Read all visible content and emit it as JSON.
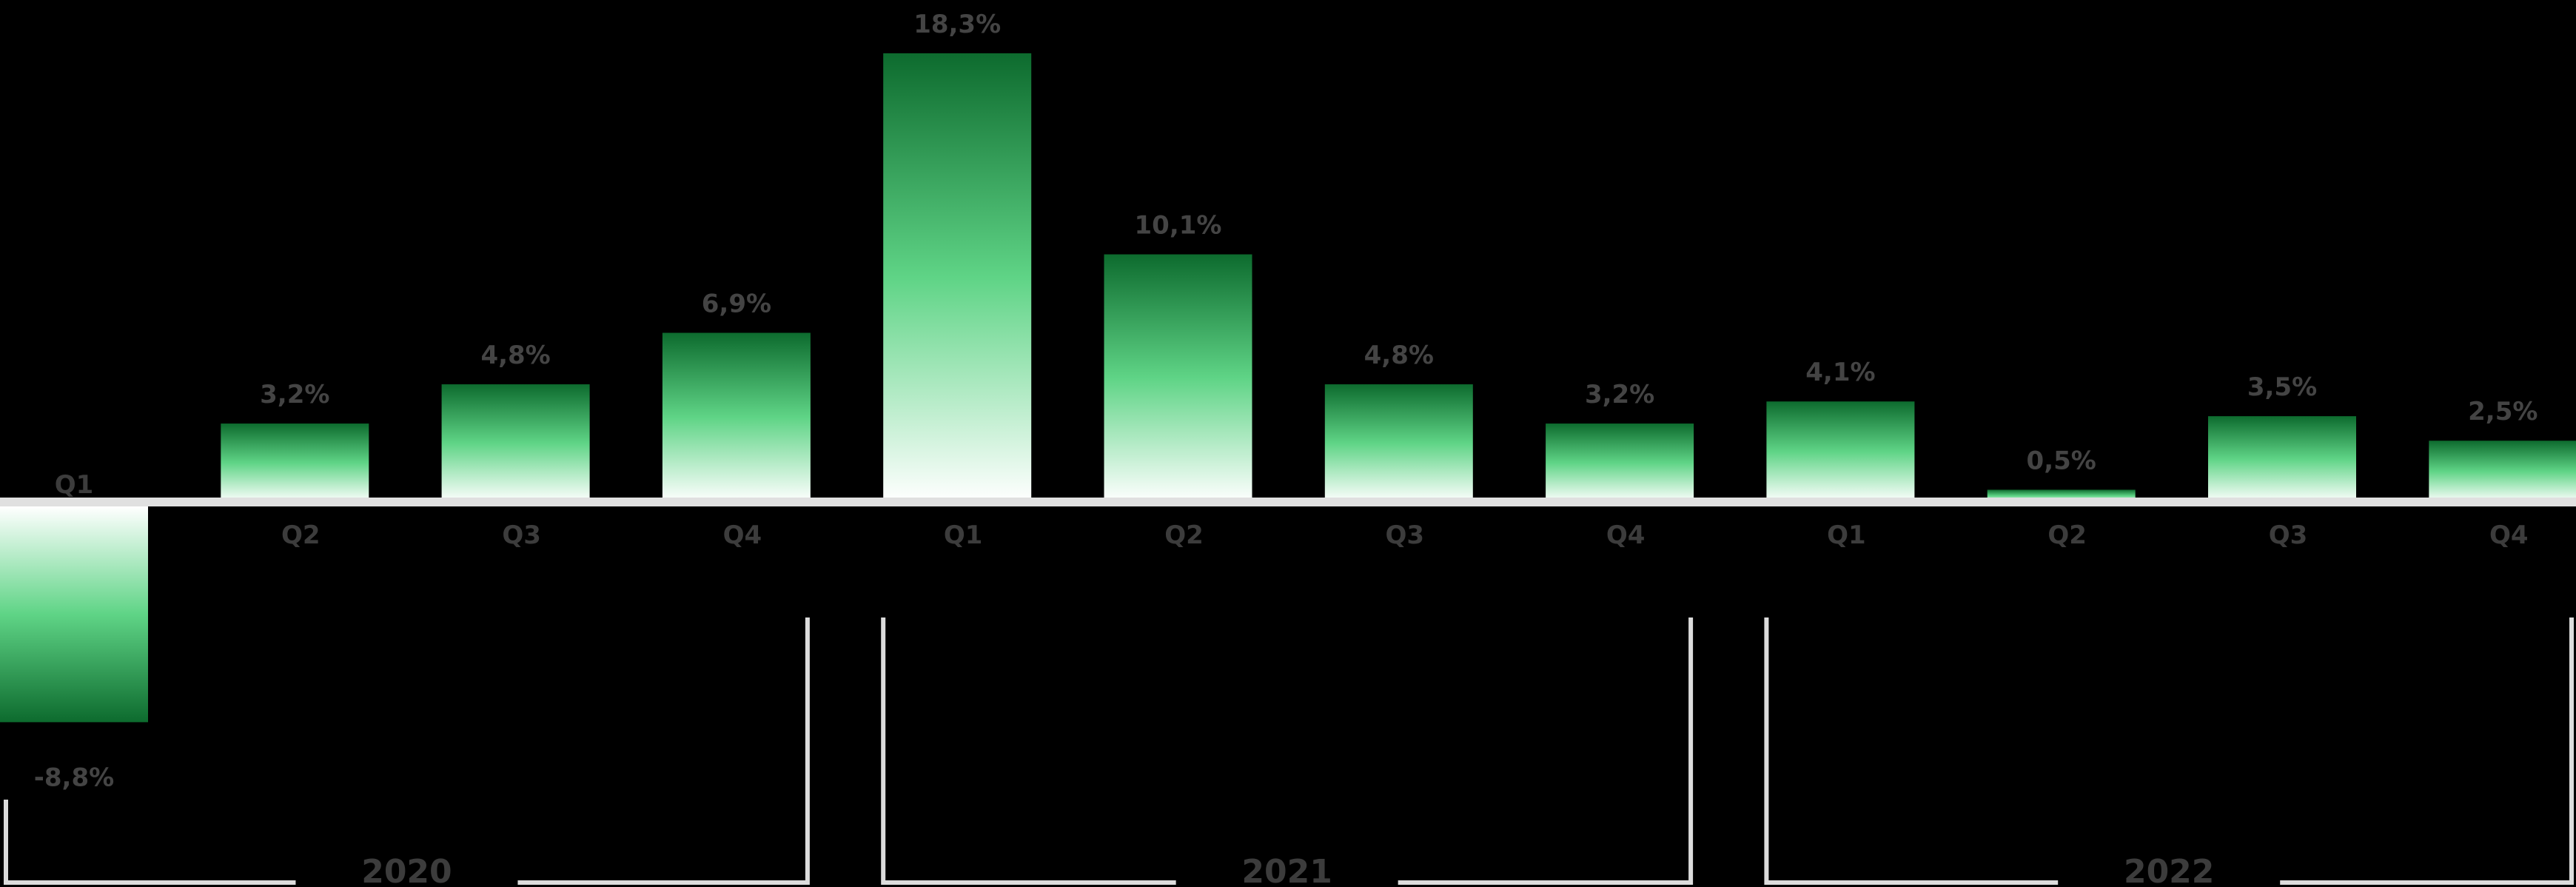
{
  "chart_data": {
    "type": "bar",
    "categories": [
      "Q1",
      "Q2",
      "Q3",
      "Q4",
      "Q1",
      "Q2",
      "Q3",
      "Q4",
      "Q1",
      "Q2",
      "Q3",
      "Q4"
    ],
    "values": [
      -8.8,
      3.2,
      4.8,
      6.9,
      18.3,
      10.1,
      4.8,
      3.2,
      4.1,
      0.5,
      3.5,
      2.5
    ],
    "data_labels": [
      "-8,8%",
      "3,2%",
      "4,8%",
      "6,9%",
      "18,3%",
      "10,1%",
      "4,8%",
      "3,2%",
      "4,1%",
      "0,5%",
      "3,5%",
      "2,5%"
    ],
    "groups": [
      {
        "label": "2020",
        "start": 0,
        "end": 3
      },
      {
        "label": "2021",
        "start": 4,
        "end": 7
      },
      {
        "label": "2022",
        "start": 8,
        "end": 11
      }
    ],
    "title": "",
    "xlabel": "",
    "ylabel": "",
    "ylim": [
      -8.8,
      18.3
    ],
    "grid": false,
    "legend": "none",
    "colors": {
      "background": "#000000",
      "bar_dark": "#0d6b2e",
      "bar_mid": "#3fbf6a",
      "bar_light": "#ffffff",
      "axis": "#e0e0e0",
      "label": "#444444",
      "bracket": "#dcdcdc"
    }
  }
}
